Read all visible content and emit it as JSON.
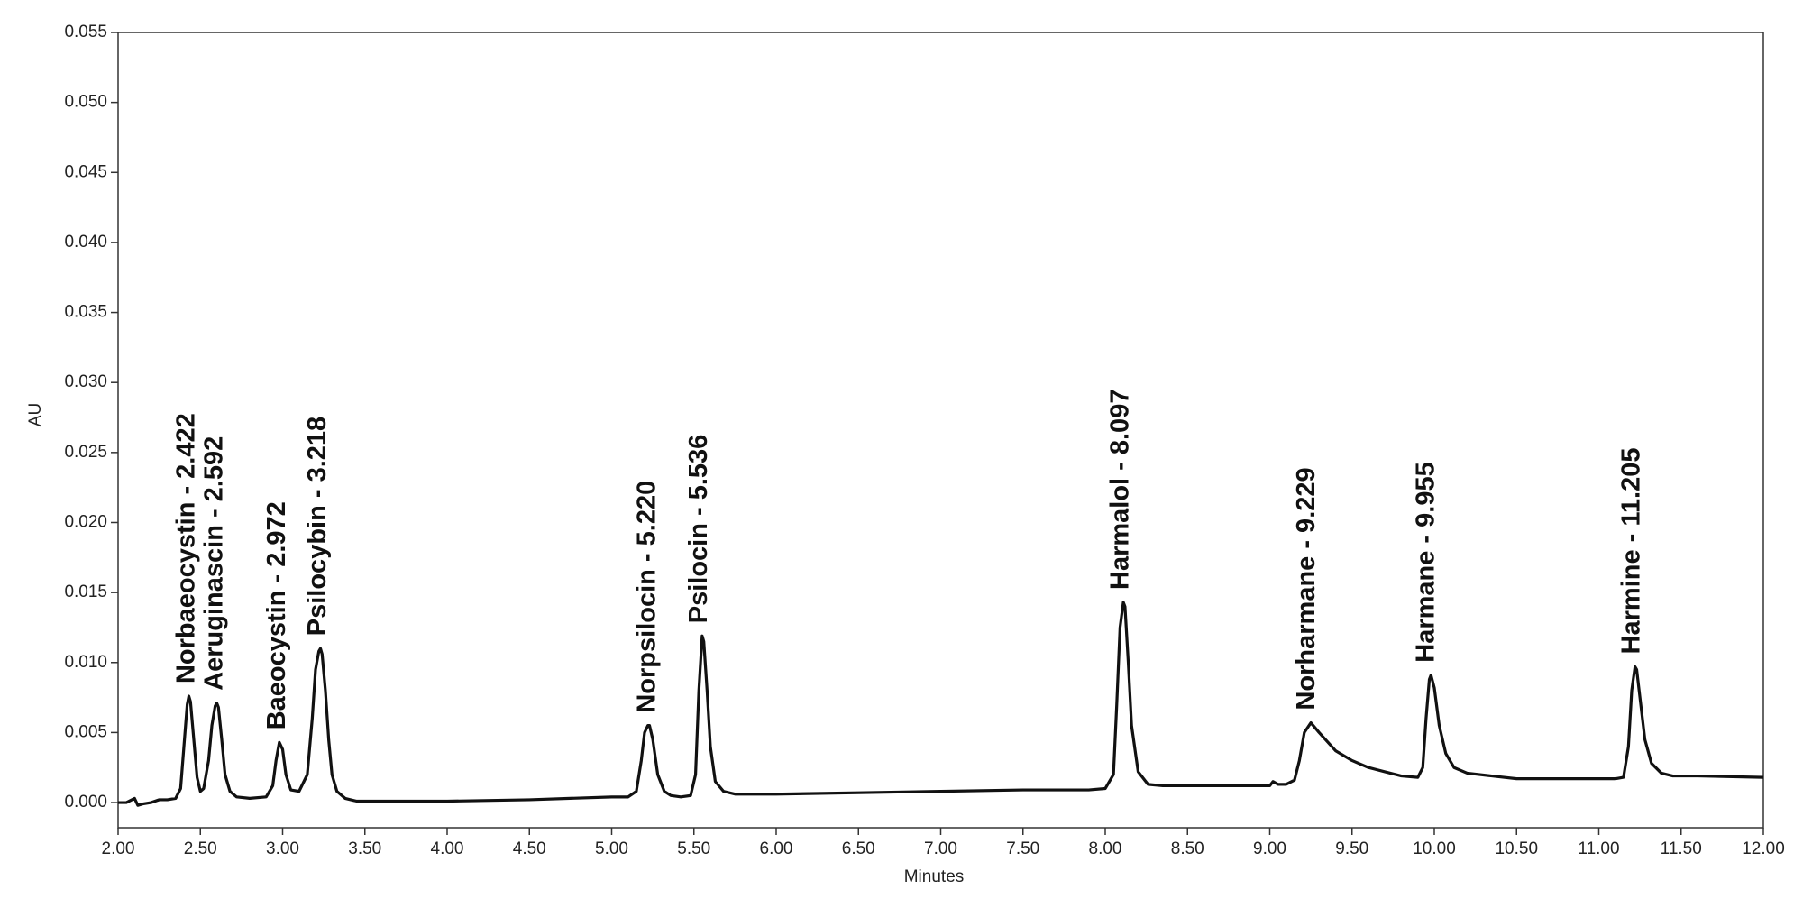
{
  "chart_data": {
    "type": "line",
    "x_label": "Minutes",
    "y_label": "AU",
    "color": "#111111",
    "x": [
      2.0,
      2.05,
      2.1,
      2.12,
      2.15,
      2.2,
      2.25,
      2.3,
      2.35,
      2.38,
      2.4,
      2.42,
      2.43,
      2.44,
      2.46,
      2.48,
      2.5,
      2.52,
      2.55,
      2.57,
      2.59,
      2.6,
      2.61,
      2.63,
      2.65,
      2.68,
      2.72,
      2.8,
      2.9,
      2.94,
      2.96,
      2.98,
      3.0,
      3.02,
      3.05,
      3.1,
      3.15,
      3.18,
      3.2,
      3.22,
      3.23,
      3.24,
      3.26,
      3.28,
      3.3,
      3.33,
      3.38,
      3.45,
      3.5,
      4.0,
      4.5,
      5.0,
      5.1,
      5.15,
      5.18,
      5.2,
      5.22,
      5.23,
      5.25,
      5.28,
      5.32,
      5.36,
      5.42,
      5.48,
      5.51,
      5.53,
      5.55,
      5.56,
      5.58,
      5.6,
      5.63,
      5.68,
      5.75,
      6.0,
      6.5,
      7.0,
      7.5,
      7.9,
      8.0,
      8.05,
      8.07,
      8.09,
      8.11,
      8.12,
      8.14,
      8.16,
      8.2,
      8.26,
      8.35,
      8.5,
      9.0,
      9.02,
      9.05,
      9.1,
      9.15,
      9.18,
      9.21,
      9.25,
      9.3,
      9.4,
      9.5,
      9.6,
      9.7,
      9.8,
      9.9,
      9.93,
      9.95,
      9.97,
      9.98,
      10.0,
      10.03,
      10.07,
      10.12,
      10.2,
      10.35,
      10.5,
      11.0,
      11.1,
      11.15,
      11.18,
      11.2,
      11.22,
      11.23,
      11.25,
      11.28,
      11.32,
      11.38,
      11.45,
      11.6,
      12.0
    ],
    "values": [
      0.0,
      0.0,
      0.0003,
      -0.0002,
      -0.0001,
      0.0,
      0.0002,
      0.0002,
      0.0003,
      0.001,
      0.004,
      0.007,
      0.0076,
      0.0072,
      0.0045,
      0.0018,
      0.0008,
      0.001,
      0.003,
      0.0055,
      0.0069,
      0.0071,
      0.0068,
      0.0045,
      0.002,
      0.0008,
      0.0004,
      0.0003,
      0.0004,
      0.0012,
      0.003,
      0.0043,
      0.0038,
      0.002,
      0.0009,
      0.0008,
      0.002,
      0.006,
      0.0095,
      0.0108,
      0.011,
      0.0106,
      0.008,
      0.0045,
      0.002,
      0.0008,
      0.0003,
      0.0001,
      0.0001,
      0.0001,
      0.0002,
      0.0004,
      0.0004,
      0.0008,
      0.003,
      0.005,
      0.0055,
      0.0055,
      0.0045,
      0.002,
      0.0008,
      0.0005,
      0.0004,
      0.0005,
      0.002,
      0.008,
      0.0119,
      0.0115,
      0.008,
      0.004,
      0.0015,
      0.0008,
      0.0006,
      0.0006,
      0.0007,
      0.0008,
      0.0009,
      0.0009,
      0.001,
      0.002,
      0.007,
      0.0125,
      0.0143,
      0.014,
      0.01,
      0.0055,
      0.0022,
      0.0013,
      0.0012,
      0.0012,
      0.0012,
      0.0015,
      0.0013,
      0.0013,
      0.0016,
      0.003,
      0.005,
      0.0057,
      0.005,
      0.0037,
      0.003,
      0.0025,
      0.0022,
      0.0019,
      0.0018,
      0.0025,
      0.006,
      0.0088,
      0.0091,
      0.0082,
      0.0055,
      0.0035,
      0.0025,
      0.0021,
      0.0019,
      0.0017,
      0.0017,
      0.0017,
      0.0018,
      0.004,
      0.008,
      0.0097,
      0.0095,
      0.0075,
      0.0045,
      0.0028,
      0.0021,
      0.0019,
      0.0019,
      0.0018
    ],
    "peaks": [
      {
        "label": "Norbaeocystin - 2.422",
        "x": 2.422,
        "y": 0.0076
      },
      {
        "label": "Aeruginascin - 2.592",
        "x": 2.592,
        "y": 0.0071
      },
      {
        "label": "Baeocystin - 2.972",
        "x": 2.972,
        "y": 0.0043
      },
      {
        "label": "Psilocybin - 3.218",
        "x": 3.218,
        "y": 0.011
      },
      {
        "label": "Norpsilocin - 5.220",
        "x": 5.22,
        "y": 0.0055
      },
      {
        "label": "Psilocin - 5.536",
        "x": 5.536,
        "y": 0.0119
      },
      {
        "label": "Harmalol - 8.097",
        "x": 8.097,
        "y": 0.0143
      },
      {
        "label": "Norharmane - 9.229",
        "x": 9.229,
        "y": 0.0057
      },
      {
        "label": "Harmane - 9.955",
        "x": 9.955,
        "y": 0.0091
      },
      {
        "label": "Harmine - 11.205",
        "x": 11.205,
        "y": 0.0097
      }
    ],
    "xlim": [
      2,
      12
    ],
    "xticks": [
      {
        "value": 2,
        "label": "2.00"
      },
      {
        "value": 2.5,
        "label": "2.50"
      },
      {
        "value": 3,
        "label": "3.00"
      },
      {
        "value": 3.5,
        "label": "3.50"
      },
      {
        "value": 4,
        "label": "4.00"
      },
      {
        "value": 4.5,
        "label": "4.50"
      },
      {
        "value": 5,
        "label": "5.00"
      },
      {
        "value": 5.5,
        "label": "5.50"
      },
      {
        "value": 6,
        "label": "6.00"
      },
      {
        "value": 6.5,
        "label": "6.50"
      },
      {
        "value": 7,
        "label": "7.00"
      },
      {
        "value": 7.5,
        "label": "7.50"
      },
      {
        "value": 8,
        "label": "8.00"
      },
      {
        "value": 8.5,
        "label": "8.50"
      },
      {
        "value": 9,
        "label": "9.00"
      },
      {
        "value": 9.5,
        "label": "9.50"
      },
      {
        "value": 10,
        "label": "10.00"
      },
      {
        "value": 10.5,
        "label": "10.50"
      },
      {
        "value": 11,
        "label": "11.00"
      },
      {
        "value": 11.5,
        "label": "11.50"
      },
      {
        "value": 12,
        "label": "12.00"
      }
    ],
    "ylim": [
      -0.0018,
      0.055
    ],
    "yticks": [
      {
        "value": 0,
        "label": "0.000"
      },
      {
        "value": 0.005,
        "label": "0.005"
      },
      {
        "value": 0.01,
        "label": "0.010"
      },
      {
        "value": 0.015,
        "label": "0.015"
      },
      {
        "value": 0.02,
        "label": "0.020"
      },
      {
        "value": 0.025,
        "label": "0.025"
      },
      {
        "value": 0.03,
        "label": "0.030"
      },
      {
        "value": 0.035,
        "label": "0.035"
      },
      {
        "value": 0.04,
        "label": "0.040"
      },
      {
        "value": 0.045,
        "label": "0.045"
      },
      {
        "value": 0.05,
        "label": "0.050"
      },
      {
        "value": 0.055,
        "label": "0.055"
      }
    ]
  }
}
